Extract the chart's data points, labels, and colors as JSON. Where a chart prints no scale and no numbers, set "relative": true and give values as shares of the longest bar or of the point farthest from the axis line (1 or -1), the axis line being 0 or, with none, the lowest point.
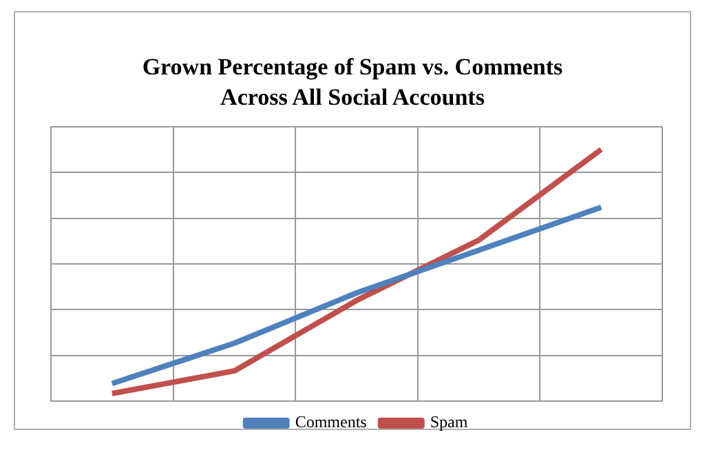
{
  "chart_data": {
    "type": "line",
    "title": "Grown Percentage of Spam vs. Comments Across All Social Accounts",
    "relative": true,
    "categories": [
      null,
      null,
      null,
      null,
      null
    ],
    "series": [
      {
        "name": "Comments",
        "color": "#4f81bd",
        "values": [
          0.07,
          0.23,
          0.43,
          0.6,
          0.77
        ]
      },
      {
        "name": "Spam",
        "color": "#c0504d",
        "values": [
          0.03,
          0.12,
          0.4,
          0.64,
          1
        ]
      }
    ],
    "grid": true,
    "legend": "bottom",
    "marker": "none",
    "line_style": "solid"
  }
}
